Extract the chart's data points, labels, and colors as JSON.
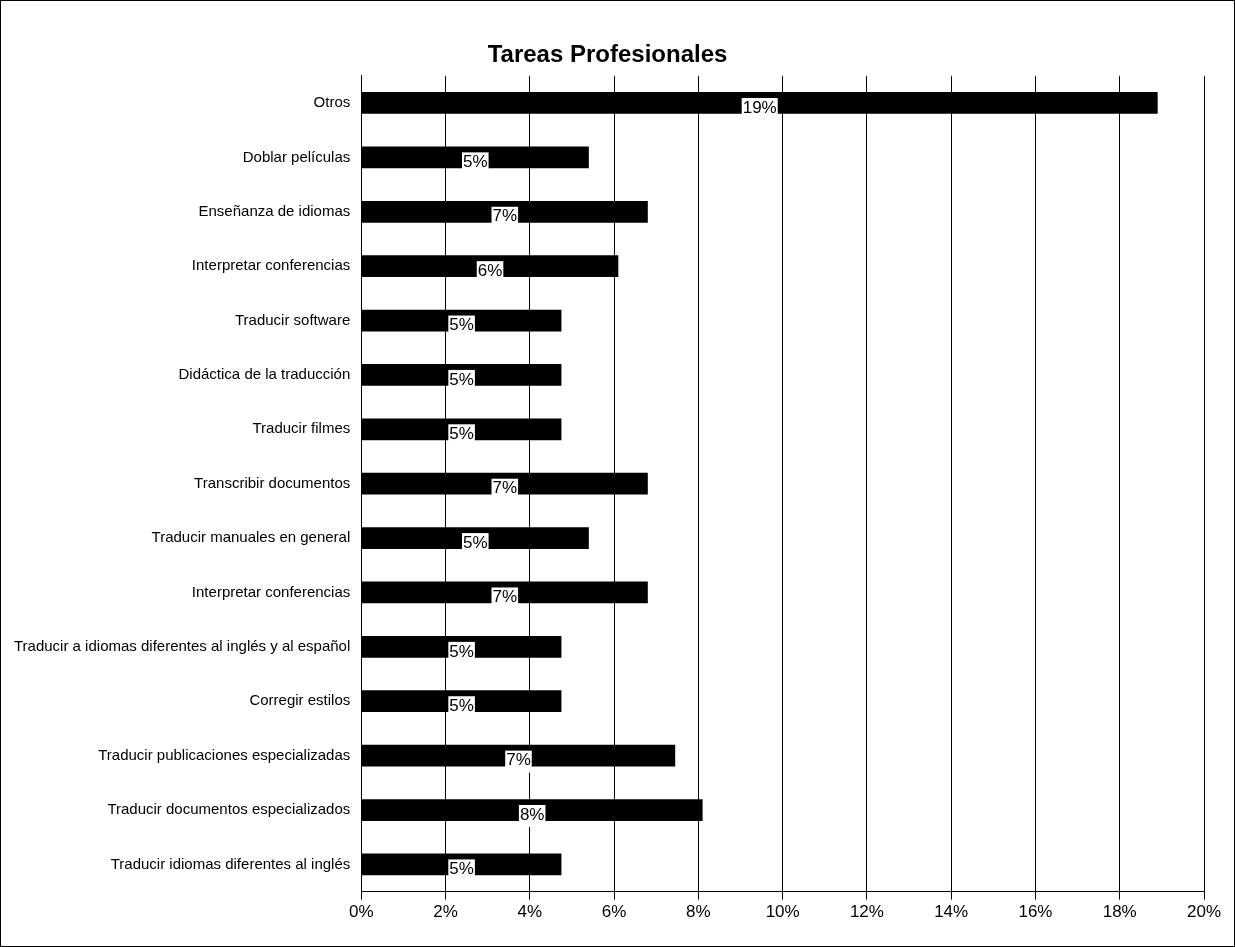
{
  "chart_data": {
    "type": "bar",
    "orientation": "horizontal",
    "title": "Tareas Profesionales",
    "categories": [
      "Otros",
      "Doblar películas",
      "Enseñanza de idiomas",
      "Interpretar conferencias",
      "Traducir software",
      "Didáctica de la traducción",
      "Traducir filmes",
      "Transcribir documentos",
      "Traducir manuales en general",
      "Interpretar conferencias",
      "Traducir a idiomas diferentes al inglés y al español",
      "Corregir estilos",
      "Traducir publicaciones especializadas",
      "Traducir documentos especializados",
      "Traducir idiomas diferentes al inglés"
    ],
    "values": [
      18.9,
      5.4,
      6.8,
      6.1,
      4.75,
      4.75,
      4.75,
      6.8,
      5.4,
      6.8,
      4.75,
      4.75,
      7.45,
      8.1,
      4.75
    ],
    "value_labels": [
      "19%",
      "5%",
      "7%",
      "6%",
      "5%",
      "5%",
      "5%",
      "7%",
      "5%",
      "7%",
      "5%",
      "5%",
      "7%",
      "8%",
      "5%"
    ],
    "color": "#000000",
    "xlim": [
      0,
      20
    ],
    "xticks": [
      {
        "value": 0,
        "label": "0%"
      },
      {
        "value": 2,
        "label": "2%"
      },
      {
        "value": 4,
        "label": "4%"
      },
      {
        "value": 6,
        "label": "6%"
      },
      {
        "value": 8,
        "label": "8%"
      },
      {
        "value": 10,
        "label": "10%"
      },
      {
        "value": 12,
        "label": "12%"
      },
      {
        "value": 14,
        "label": "14%"
      },
      {
        "value": 16,
        "label": "16%"
      },
      {
        "value": 18,
        "label": "18%"
      },
      {
        "value": 20,
        "label": "20%"
      }
    ],
    "grid": "x",
    "legend": false
  }
}
